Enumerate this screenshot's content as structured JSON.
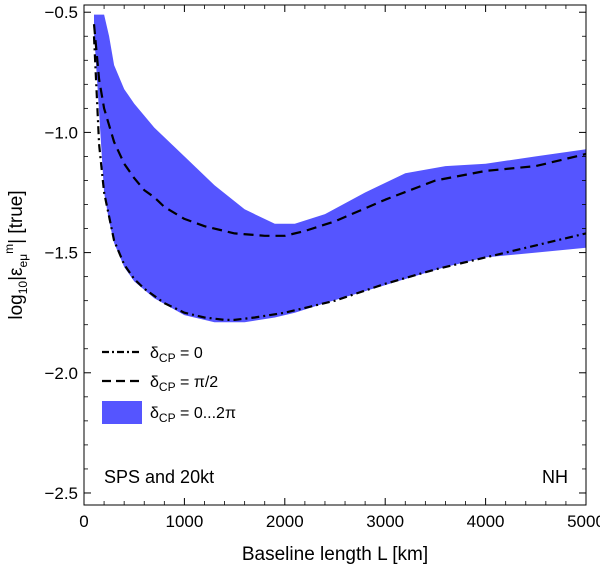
{
  "chart_data": {
    "type": "line",
    "xlabel": "Baseline length L [km]",
    "ylabel": "log₁₀|ε_eμ^m| [true]",
    "ylabel_parts": {
      "prefix": "log",
      "sub1": "10",
      "mid": "|ε",
      "sub2": "eμ",
      "sup": "m",
      "suffix": "| [true]"
    },
    "xlim": [
      0,
      5000
    ],
    "ylim": [
      -2.55,
      -0.47
    ],
    "xticks": [
      0,
      1000,
      2000,
      3000,
      4000,
      5000
    ],
    "xtick_labels": [
      "0",
      "1000",
      "2000",
      "3000",
      "4000",
      "5000"
    ],
    "yticks": [
      -2.5,
      -2.0,
      -1.5,
      -1.0,
      -0.5
    ],
    "ytick_labels": [
      "−2.5",
      "−2.0",
      "−1.5",
      "−1.0",
      "−0.5"
    ],
    "grid": false,
    "series": [
      {
        "name": "δCP = 0",
        "legend": {
          "symbol": "δ",
          "sub": "CP",
          "text": " = 0"
        },
        "style": "dash-dot",
        "color": "#000000",
        "x": [
          100,
          150,
          200,
          300,
          400,
          500,
          600,
          700,
          800,
          1000,
          1200,
          1400,
          1500,
          1700,
          2000,
          2500,
          3000,
          3500,
          4000,
          4500,
          5000
        ],
        "y": [
          -0.6,
          -1.05,
          -1.25,
          -1.45,
          -1.55,
          -1.61,
          -1.65,
          -1.68,
          -1.71,
          -1.75,
          -1.77,
          -1.78,
          -1.78,
          -1.77,
          -1.75,
          -1.7,
          -1.63,
          -1.57,
          -1.52,
          -1.47,
          -1.42
        ]
      },
      {
        "name": "δCP = π/2",
        "legend": {
          "symbol": "δ",
          "sub": "CP",
          "text": " = π/2"
        },
        "style": "dashed",
        "color": "#000000",
        "x": [
          100,
          150,
          200,
          300,
          400,
          500,
          600,
          700,
          800,
          1000,
          1200,
          1500,
          1800,
          2000,
          2200,
          2500,
          3000,
          3500,
          4000,
          4500,
          5000
        ],
        "y": [
          -0.55,
          -0.78,
          -0.9,
          -1.04,
          -1.13,
          -1.19,
          -1.24,
          -1.27,
          -1.31,
          -1.36,
          -1.39,
          -1.42,
          -1.43,
          -1.43,
          -1.41,
          -1.37,
          -1.28,
          -1.2,
          -1.16,
          -1.14,
          -1.09
        ]
      },
      {
        "name": "δCP = 0...2π",
        "legend": {
          "symbol": "δ",
          "sub": "CP",
          "text": " = 0...2π"
        },
        "style": "band",
        "color": "#5555ff",
        "x": [
          100,
          200,
          250,
          300,
          400,
          500,
          700,
          1000,
          1300,
          1600,
          1900,
          2100,
          2400,
          2800,
          3200,
          3600,
          4000,
          4500,
          5000
        ],
        "upper": [
          -0.51,
          -0.51,
          -0.6,
          -0.72,
          -0.82,
          -0.88,
          -0.98,
          -1.1,
          -1.22,
          -1.32,
          -1.38,
          -1.38,
          -1.34,
          -1.25,
          -1.17,
          -1.14,
          -1.13,
          -1.1,
          -1.07
        ],
        "lower": [
          -0.58,
          -1.25,
          -1.37,
          -1.46,
          -1.56,
          -1.62,
          -1.69,
          -1.76,
          -1.79,
          -1.79,
          -1.77,
          -1.75,
          -1.71,
          -1.66,
          -1.61,
          -1.56,
          -1.52,
          -1.5,
          -1.48
        ]
      }
    ],
    "annotations": [
      "SPS and 20kt",
      "NH"
    ]
  }
}
